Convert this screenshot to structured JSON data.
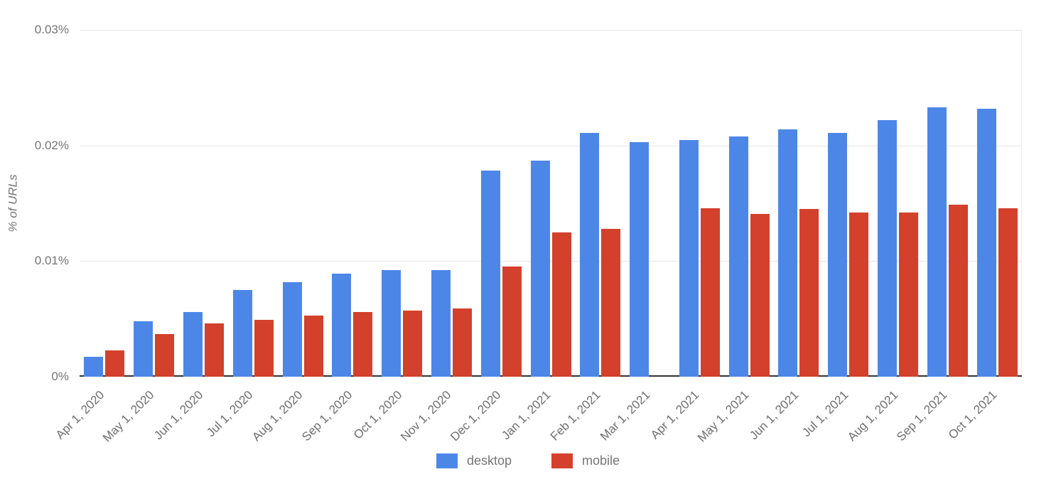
{
  "chart_data": {
    "type": "bar",
    "title": "",
    "xlabel": "",
    "ylabel": "% of URLs",
    "ylim": [
      0,
      0.03
    ],
    "yticks": [
      0,
      0.01,
      0.02,
      0.03
    ],
    "ytick_labels": [
      "0%",
      "0.01%",
      "0.02%",
      "0.03%"
    ],
    "grid": true,
    "legend_position": "bottom",
    "categories": [
      "Apr 1, 2020",
      "May 1, 2020",
      "Jun 1, 2020",
      "Jul 1, 2020",
      "Aug 1, 2020",
      "Sep 1, 2020",
      "Oct 1, 2020",
      "Nov 1, 2020",
      "Dec 1, 2020",
      "Jan 1, 2021",
      "Feb 1, 2021",
      "Mar 1, 2021",
      "Apr 1, 2021",
      "May 1, 2021",
      "Jun 1, 2021",
      "Jul 1, 2021",
      "Aug 1, 2021",
      "Sep 1, 2021",
      "Oct 1, 2021"
    ],
    "series": [
      {
        "name": "desktop",
        "color": "#4C87E8",
        "values": [
          0.0017,
          0.0048,
          0.0056,
          0.0075,
          0.0082,
          0.0089,
          0.0092,
          0.0092,
          0.0178,
          0.0187,
          0.0211,
          0.0203,
          0.0205,
          0.0208,
          0.0214,
          0.0211,
          0.0222,
          0.0233,
          0.0232
        ]
      },
      {
        "name": "mobile",
        "color": "#D3402C",
        "values": [
          0.0023,
          0.0037,
          0.0046,
          0.0049,
          0.0053,
          0.0056,
          0.0057,
          0.0059,
          0.0095,
          0.0125,
          0.0128,
          null,
          0.0146,
          0.0141,
          0.0145,
          0.0142,
          0.0142,
          0.0149,
          0.0146
        ]
      }
    ]
  },
  "colors": {
    "axis_text": "#757575",
    "gridline": "#e6e6e6",
    "baseline": "#333333"
  }
}
